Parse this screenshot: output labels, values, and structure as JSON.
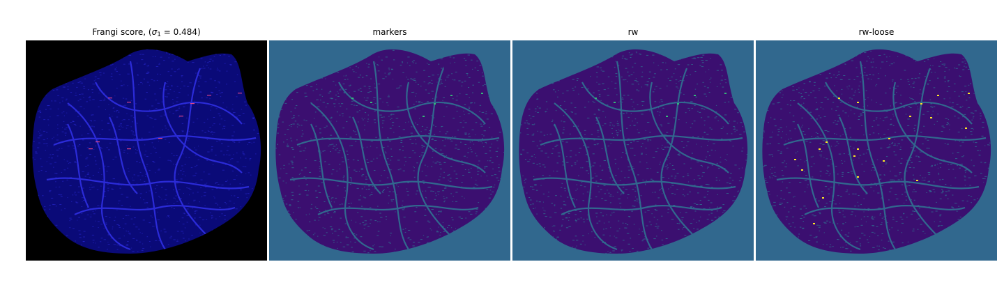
{
  "figure": {
    "panels": [
      {
        "id": "frangi",
        "title_prefix": "Frangi score, (",
        "title_sigma": "σ",
        "title_sub": "1",
        "title_suffix": " = 0.484)",
        "colors": {
          "background": "#000000",
          "tissue": "#0a0a78",
          "vessel": "#2b2bd8",
          "highlight": "#e0448a"
        }
      },
      {
        "id": "markers",
        "title": "markers",
        "colors": {
          "background": "#31688e",
          "tissue": "#3b0f70",
          "vessel": "#31688e",
          "highlight": "#35b779"
        }
      },
      {
        "id": "rw",
        "title": "rw",
        "colors": {
          "background": "#31688e",
          "tissue": "#3b0f70",
          "vessel": "#31688e",
          "highlight": "#35b779"
        }
      },
      {
        "id": "rw-loose",
        "title": "rw-loose",
        "colors": {
          "background": "#31688e",
          "tissue": "#3b0f70",
          "vessel": "#31688e",
          "highlight": "#fde725"
        }
      }
    ]
  }
}
